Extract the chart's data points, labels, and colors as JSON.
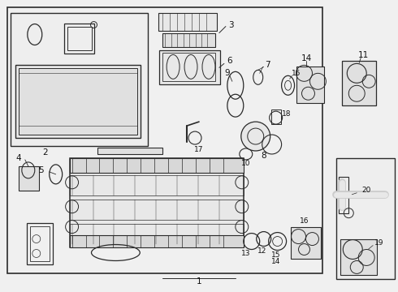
{
  "bg_color": "#f0f0f0",
  "line_color": "#2a2a2a",
  "text_color": "#111111",
  "fig_width": 4.9,
  "fig_height": 3.6,
  "dpi": 100
}
